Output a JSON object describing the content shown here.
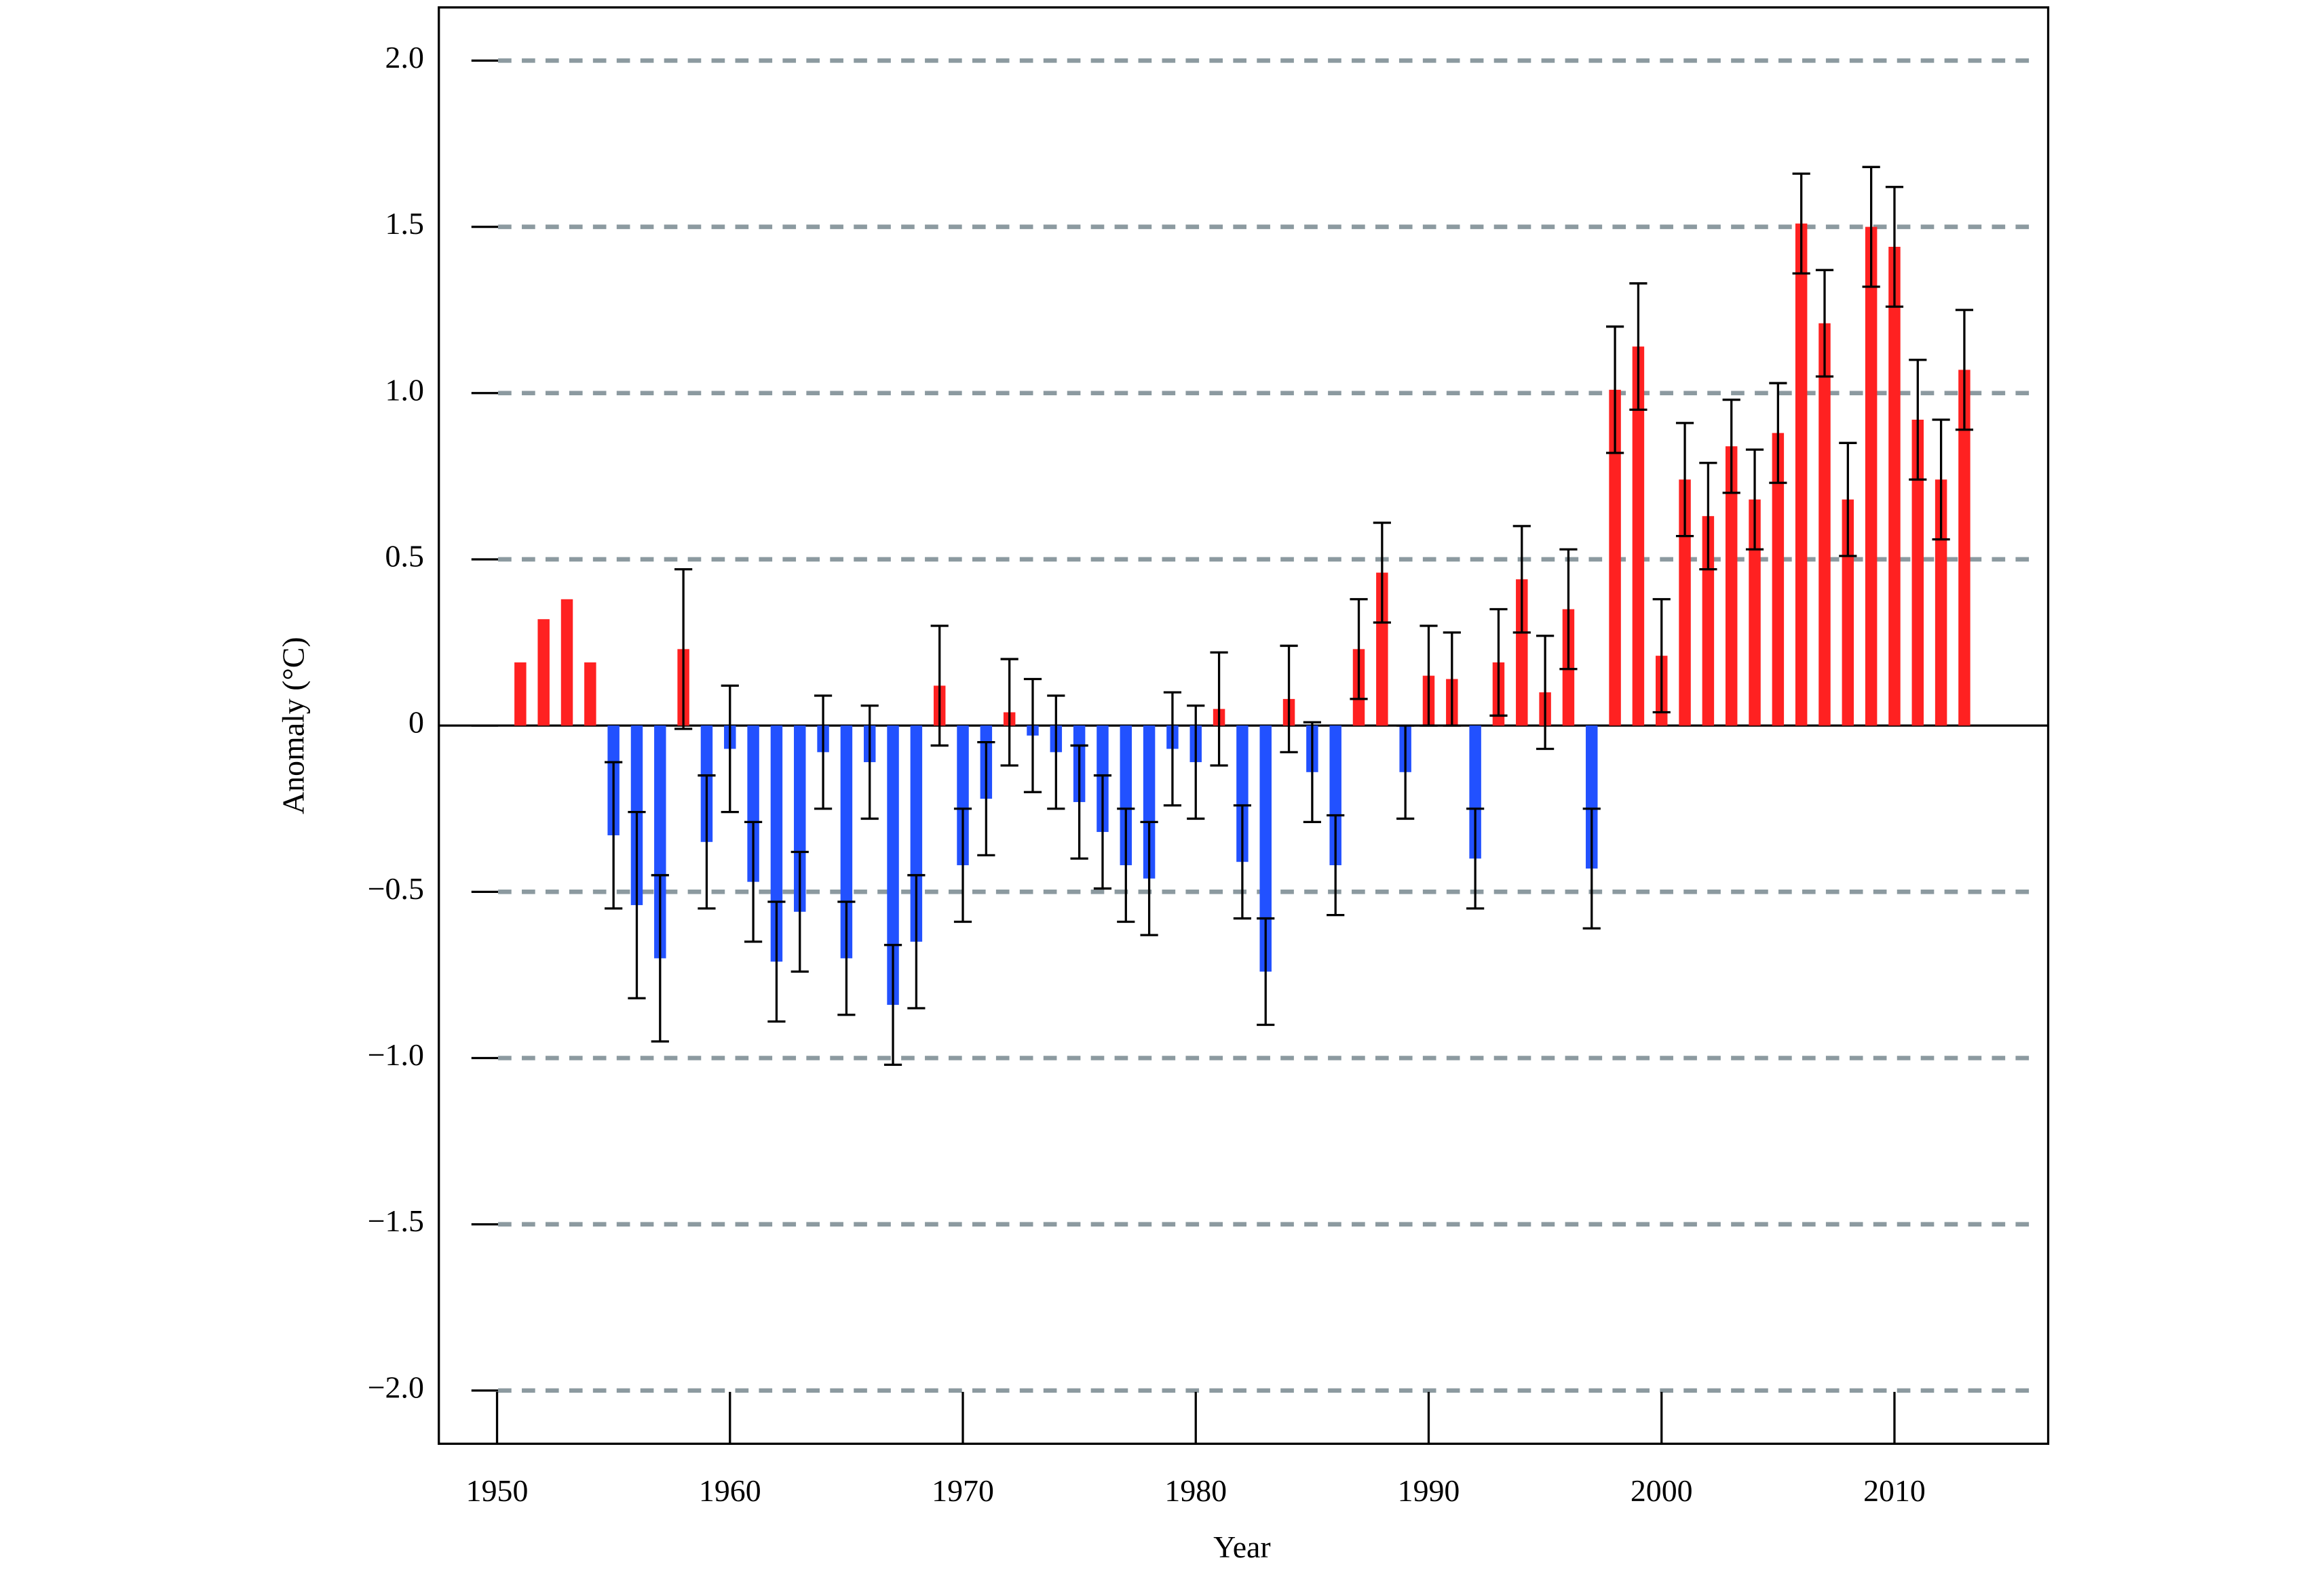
{
  "chart_data": {
    "type": "bar",
    "x_label": "Year",
    "y_label": "Anomaly (°C)",
    "x": [
      1951,
      1952,
      1953,
      1954,
      1955,
      1956,
      1957,
      1958,
      1959,
      1960,
      1961,
      1962,
      1963,
      1964,
      1965,
      1966,
      1967,
      1968,
      1969,
      1970,
      1971,
      1972,
      1973,
      1974,
      1975,
      1976,
      1977,
      1978,
      1979,
      1980,
      1981,
      1982,
      1983,
      1984,
      1985,
      1986,
      1987,
      1988,
      1989,
      1990,
      1991,
      1992,
      1993,
      1994,
      1995,
      1996,
      1997,
      1998,
      1999,
      2000,
      2001,
      2002,
      2003,
      2004,
      2005,
      2006,
      2007,
      2008,
      2009,
      2010,
      2011,
      2012,
      2013
    ],
    "values": [
      0.19,
      0.32,
      0.38,
      0.19,
      -0.33,
      -0.54,
      -0.7,
      0.23,
      -0.35,
      -0.07,
      -0.47,
      -0.71,
      -0.56,
      -0.08,
      -0.7,
      -0.11,
      -0.84,
      -0.65,
      0.12,
      -0.42,
      -0.22,
      0.04,
      -0.03,
      -0.08,
      -0.23,
      -0.32,
      -0.42,
      -0.46,
      -0.07,
      -0.11,
      0.05,
      -0.41,
      -0.74,
      0.08,
      -0.14,
      -0.42,
      0.23,
      0.46,
      -0.14,
      0.15,
      0.14,
      -0.4,
      0.19,
      0.44,
      0.1,
      0.35,
      -0.43,
      1.01,
      1.14,
      0.21,
      0.74,
      0.63,
      0.84,
      0.68,
      0.88,
      1.51,
      1.21,
      0.68,
      1.5,
      1.44,
      0.92,
      0.74,
      1.07
    ],
    "errors": [
      null,
      null,
      null,
      null,
      0.22,
      0.28,
      0.25,
      0.24,
      0.2,
      0.19,
      0.18,
      0.18,
      0.18,
      0.17,
      0.17,
      0.17,
      0.18,
      0.2,
      0.18,
      0.17,
      0.17,
      0.16,
      0.17,
      0.17,
      0.17,
      0.17,
      0.17,
      0.17,
      0.17,
      0.17,
      0.17,
      0.17,
      0.16,
      0.16,
      0.15,
      0.15,
      0.15,
      0.15,
      0.14,
      0.15,
      0.14,
      0.15,
      0.16,
      0.16,
      0.17,
      0.18,
      0.18,
      0.19,
      0.19,
      0.17,
      0.17,
      0.16,
      0.14,
      0.15,
      0.15,
      0.15,
      0.16,
      0.17,
      0.18,
      0.18,
      0.18,
      0.18,
      0.18
    ],
    "positive_color": "#ff2121",
    "negative_color": "#2251ff",
    "xlim": [
      1947.5,
      2016.6
    ],
    "xticks": [
      1950,
      1960,
      1970,
      1980,
      1990,
      2000,
      2010
    ],
    "ylim": [
      -2.16,
      2.16
    ],
    "yticks": [
      {
        "value": -2,
        "label": "−2.0"
      },
      {
        "value": -1.5,
        "label": "−1.5"
      },
      {
        "value": -1,
        "label": "−1.0"
      },
      {
        "value": -0.5,
        "label": "−0.5"
      },
      0,
      {
        "value": 0.5,
        "label": "0.5"
      },
      {
        "value": 1,
        "label": "1.0"
      },
      {
        "value": 1.5,
        "label": "1.5"
      },
      {
        "value": 2,
        "label": "2.0"
      }
    ],
    "grid": true
  }
}
